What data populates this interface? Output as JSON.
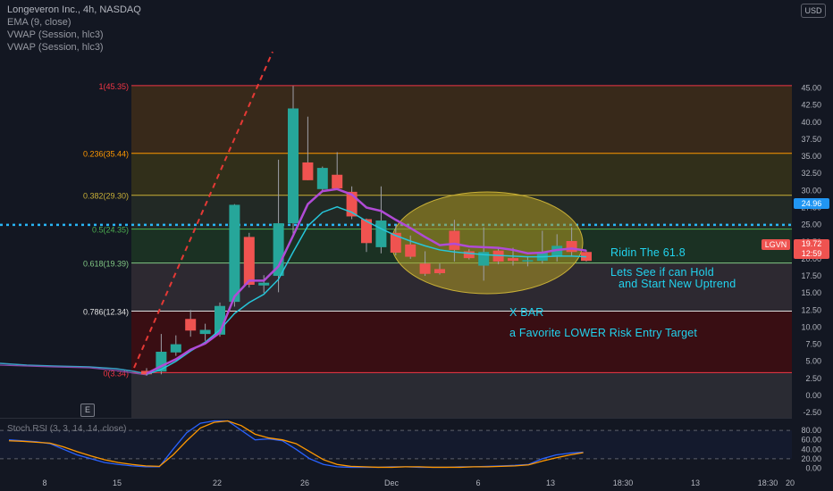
{
  "legend": {
    "title": "Longeveron Inc., 4h, NASDAQ",
    "ema": "EMA (9, close)",
    "vwap1": "VWAP (Session, hlc3)",
    "vwap2": "VWAP (Session, hlc3)"
  },
  "currency_button": "USD",
  "oscillator_legend": "Stoch RSI (3, 3, 14, 14, close)",
  "event_badge": "E",
  "symbol_tag": "LGVN",
  "last_price_tag": "19.72",
  "countdown_tag": "12:59",
  "level_tag": "24.96",
  "annotations": {
    "ridin": "Ridin The 61.8",
    "hold_line1": "Lets See if can Hold",
    "hold_line2": "and Start New Uptrend",
    "xbar": "X BAR",
    "entry": "a Favorite LOWER Risk Entry Target"
  },
  "colors": {
    "up": "#26a69a",
    "down": "#ef5350",
    "ema": "#b04bd6",
    "vwap": "#26c6da",
    "annotation": "#22d3ee",
    "ellipse": "#b09b22",
    "dotted_level": "#29b6f6"
  },
  "chart_data": [
    {
      "type": "candlestick",
      "title": "Longeveron Inc., 4h, NASDAQ",
      "ylim": [
        -2.5,
        45
      ],
      "y_ticks": [
        "45.00",
        "42.50",
        "40.00",
        "37.50",
        "35.00",
        "32.50",
        "30.00",
        "27.50",
        "25.00",
        "22.50",
        "20.00",
        "17.50",
        "15.00",
        "12.50",
        "10.00",
        "7.50",
        "5.00",
        "2.50",
        "0.00",
        "-2.50"
      ],
      "x_ticks": [
        "8",
        "15",
        "22",
        "26",
        "Dec",
        "6",
        "13",
        "18:30",
        "13",
        "18:30",
        "20"
      ],
      "fib_levels": [
        {
          "label": "1(45.35)",
          "value": 45.35,
          "line": "#f23645"
        },
        {
          "label": "0.236(35.44)",
          "value": 35.44,
          "line": "#ff9800"
        },
        {
          "label": "0.382(29.30)",
          "value": 29.3,
          "line": "#c9b037"
        },
        {
          "label": "0.5(24.35)",
          "value": 24.35,
          "line": "#4caf50"
        },
        {
          "label": "0.618(19.39)",
          "value": 19.39,
          "line": "#81c784"
        },
        {
          "label": "0.786(12.34)",
          "value": 12.34,
          "line": "#e0e0e0"
        },
        {
          "label": "0(3.34)",
          "value": 3.34,
          "line": "#f23645"
        }
      ],
      "dotted_level": 24.96,
      "last_price": 19.72,
      "candles": [
        {
          "o": 3.6,
          "h": 4.0,
          "l": 2.9,
          "c": 3.1
        },
        {
          "o": 3.5,
          "h": 9.0,
          "l": 3.1,
          "c": 6.4
        },
        {
          "o": 6.3,
          "h": 8.8,
          "l": 5.8,
          "c": 7.5
        },
        {
          "o": 11.2,
          "h": 12.5,
          "l": 8.6,
          "c": 9.5
        },
        {
          "o": 9.0,
          "h": 10.5,
          "l": 8.0,
          "c": 9.6
        },
        {
          "o": 8.9,
          "h": 13.6,
          "l": 8.6,
          "c": 13.1
        },
        {
          "o": 13.7,
          "h": 28.0,
          "l": 13.0,
          "c": 27.9
        },
        {
          "o": 23.2,
          "h": 23.8,
          "l": 15.8,
          "c": 16.2
        },
        {
          "o": 16.1,
          "h": 17.6,
          "l": 15.0,
          "c": 16.5
        },
        {
          "o": 17.5,
          "h": 34.5,
          "l": 15.1,
          "c": 25.2
        },
        {
          "o": 25.2,
          "h": 45.3,
          "l": 23.5,
          "c": 42.0
        },
        {
          "o": 34.1,
          "h": 40.8,
          "l": 31.5,
          "c": 31.5
        },
        {
          "o": 30.2,
          "h": 33.5,
          "l": 29.8,
          "c": 33.3
        },
        {
          "o": 32.3,
          "h": 35.6,
          "l": 30.2,
          "c": 30.3
        },
        {
          "o": 29.8,
          "h": 30.6,
          "l": 25.8,
          "c": 26.2
        },
        {
          "o": 25.8,
          "h": 25.9,
          "l": 21.0,
          "c": 22.3
        },
        {
          "o": 21.7,
          "h": 30.6,
          "l": 20.8,
          "c": 25.6
        },
        {
          "o": 23.8,
          "h": 25.0,
          "l": 20.5,
          "c": 20.9
        },
        {
          "o": 22.1,
          "h": 23.4,
          "l": 20.0,
          "c": 20.3
        },
        {
          "o": 19.3,
          "h": 21.1,
          "l": 17.5,
          "c": 17.8
        },
        {
          "o": 18.5,
          "h": 19.3,
          "l": 17.7,
          "c": 17.9
        },
        {
          "o": 24.1,
          "h": 25.7,
          "l": 19.6,
          "c": 21.3
        },
        {
          "o": 21.1,
          "h": 21.4,
          "l": 19.9,
          "c": 20.1
        },
        {
          "o": 19.0,
          "h": 24.6,
          "l": 16.8,
          "c": 21.0
        },
        {
          "o": 21.2,
          "h": 21.6,
          "l": 19.2,
          "c": 19.6
        },
        {
          "o": 20.1,
          "h": 21.6,
          "l": 19.0,
          "c": 19.7
        },
        {
          "o": 19.6,
          "h": 20.4,
          "l": 18.9,
          "c": 19.8
        },
        {
          "o": 19.7,
          "h": 24.1,
          "l": 19.3,
          "c": 21.0
        },
        {
          "o": 20.3,
          "h": 23.6,
          "l": 19.6,
          "c": 21.9
        },
        {
          "o": 22.6,
          "h": 24.6,
          "l": 20.3,
          "c": 21.0
        },
        {
          "o": 21.0,
          "h": 21.3,
          "l": 19.6,
          "c": 19.7
        }
      ],
      "ema": [
        3.2,
        4.3,
        5.3,
        6.7,
        7.6,
        9.2,
        14.5,
        16.8,
        16.8,
        18.9,
        23.4,
        28.0,
        29.9,
        30.2,
        29.4,
        27.5,
        27.0,
        25.7,
        24.5,
        23.2,
        22.0,
        22.2,
        21.8,
        21.7,
        21.6,
        21.3,
        20.8,
        20.9,
        21.3,
        21.5,
        21.2
      ],
      "vwap": [
        3.1,
        3.8,
        5.0,
        6.5,
        7.8,
        9.6,
        12.0,
        13.6,
        14.8,
        17.0,
        21.0,
        24.8,
        26.8,
        27.6,
        26.8,
        25.5,
        24.4,
        23.4,
        22.6,
        21.9,
        21.3,
        21.0,
        20.8,
        20.6,
        20.5,
        20.4,
        20.3,
        20.3,
        20.4,
        20.4,
        20.3
      ]
    },
    {
      "type": "line",
      "title": "Stoch RSI (3, 3, 14, 14, close)",
      "ylim": [
        -2,
        100
      ],
      "y_ticks": [
        "80.00",
        "60.00",
        "40.00",
        "20.00",
        "0.00"
      ],
      "bands": [
        20,
        80
      ],
      "series": [
        {
          "name": "K",
          "color": "#2962ff",
          "values": [
            60,
            58,
            56,
            52,
            40,
            28,
            20,
            12,
            8,
            5,
            3,
            3,
            40,
            75,
            95,
            100,
            100,
            80,
            60,
            62,
            58,
            40,
            20,
            8,
            3,
            2,
            2,
            2,
            3,
            3,
            2,
            2,
            2,
            3,
            3,
            4,
            5,
            6,
            8,
            20,
            28,
            32,
            34
          ]
        },
        {
          "name": "D",
          "color": "#ff9800",
          "values": [
            58,
            57,
            55,
            53,
            45,
            35,
            26,
            18,
            12,
            8,
            5,
            4,
            28,
            58,
            85,
            97,
            100,
            90,
            72,
            64,
            60,
            52,
            35,
            18,
            8,
            4,
            3,
            2,
            2,
            3,
            3,
            2,
            2,
            2,
            3,
            3,
            4,
            5,
            7,
            15,
            22,
            28,
            33
          ]
        }
      ]
    }
  ]
}
